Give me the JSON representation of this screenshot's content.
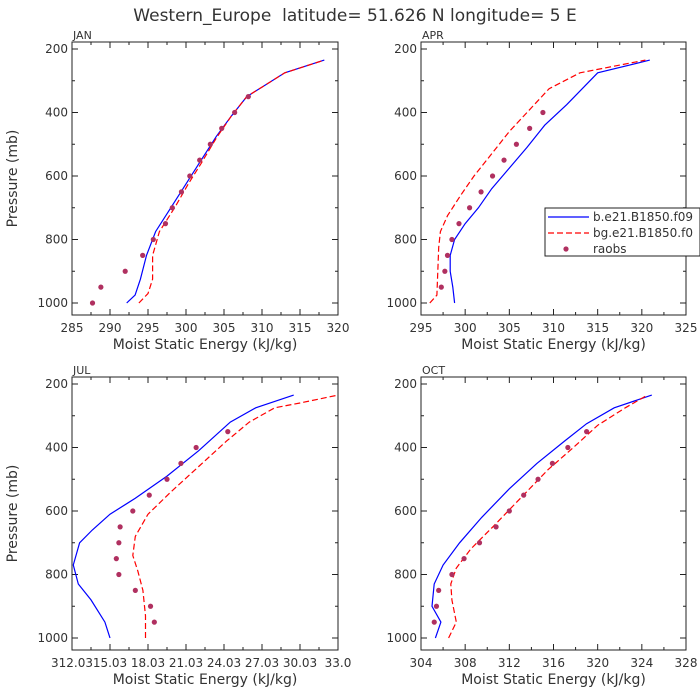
{
  "figure_title": "Western_Europe  latitude= 51.626 N longitude= 5 E",
  "legend": {
    "entries": [
      {
        "label": "b.e21.B1850.f09",
        "color": "#0000ff",
        "style": "solid"
      },
      {
        "label": "bg.e21.B1850.f0",
        "color": "#ff0000",
        "style": "dashed"
      },
      {
        "label": "raobs",
        "color": "#b03060",
        "style": "dot"
      }
    ]
  },
  "chart_data": [
    {
      "type": "line",
      "panel": "JAN",
      "title": "JAN",
      "xlabel": "Moist Static Energy (kJ/kg)",
      "ylabel": "Pressure (mb)",
      "xlim": [
        285,
        320
      ],
      "ylim": [
        1000,
        200
      ],
      "y_inverted": true,
      "xticks": [
        "285",
        "290",
        "295",
        "300",
        "305",
        "310",
        "315",
        "320"
      ],
      "yticks": [
        "200",
        "400",
        "600",
        "800",
        "1000"
      ],
      "series": [
        {
          "name": "b.e21.B1850.f09",
          "style": "solid",
          "color": "#0000ff",
          "x": [
            292.2,
            293.3,
            294.0,
            294.8,
            296.0,
            298.0,
            300.0,
            302.0,
            304.0,
            306.0,
            308.0,
            310.0,
            313.0,
            318.2
          ],
          "y": [
            1000,
            975,
            925,
            850,
            775,
            700,
            625,
            550,
            475,
            410,
            350,
            320,
            275,
            235
          ]
        },
        {
          "name": "bg.e21.B1850.f0",
          "style": "dashed",
          "color": "#ff0000",
          "x": [
            293.8,
            295.0,
            295.6,
            295.6,
            296.5,
            298.5,
            300.3,
            302.0,
            304.0,
            306.0,
            308.0,
            310.0,
            313.0,
            318.2
          ],
          "y": [
            1000,
            970,
            925,
            850,
            775,
            700,
            625,
            560,
            480,
            410,
            350,
            320,
            275,
            235
          ]
        },
        {
          "name": "raobs",
          "style": "dot",
          "color": "#b03060",
          "x": [
            287.7,
            288.8,
            292.0,
            294.3,
            295.7,
            297.3,
            298.2,
            299.4,
            300.5,
            301.8,
            303.2,
            304.7,
            306.4,
            308.2
          ],
          "y": [
            1000,
            950,
            900,
            850,
            800,
            750,
            700,
            650,
            600,
            550,
            500,
            450,
            400,
            350
          ]
        }
      ]
    },
    {
      "type": "line",
      "panel": "APR",
      "title": "APR",
      "xlabel": "Moist Static Energy (kJ/kg)",
      "ylabel": "",
      "xlim": [
        295,
        325
      ],
      "ylim": [
        1000,
        200
      ],
      "y_inverted": true,
      "xticks": [
        "295",
        "300",
        "305",
        "310",
        "315",
        "320",
        "325"
      ],
      "yticks": [
        "200",
        "400",
        "600",
        "800",
        "1000"
      ],
      "series": [
        {
          "name": "b.e21.B1850.f09",
          "style": "solid",
          "color": "#0000ff",
          "x": [
            298.8,
            298.6,
            298.3,
            298.3,
            298.8,
            300.0,
            301.5,
            303.0,
            305.0,
            307.0,
            309.0,
            311.5,
            315.0,
            320.9
          ],
          "y": [
            1000,
            950,
            900,
            850,
            800,
            750,
            700,
            640,
            575,
            510,
            440,
            375,
            275,
            235
          ]
        },
        {
          "name": "bg.e21.B1850.f0",
          "style": "dashed",
          "color": "#ff0000",
          "x": [
            296.0,
            296.8,
            296.9,
            297.0,
            297.2,
            298.0,
            299.5,
            301.0,
            303.0,
            305.0,
            307.0,
            309.5,
            313.0,
            320.4
          ],
          "y": [
            1000,
            975,
            900,
            825,
            775,
            725,
            660,
            600,
            530,
            460,
            400,
            325,
            275,
            235
          ]
        },
        {
          "name": "raobs",
          "style": "dot",
          "color": "#b03060",
          "x": [
            297.3,
            297.7,
            298.0,
            298.5,
            299.3,
            300.5,
            301.8,
            303.1,
            304.4,
            305.8,
            307.3,
            308.8
          ],
          "y": [
            950,
            900,
            850,
            800,
            750,
            700,
            650,
            600,
            550,
            500,
            450,
            400
          ]
        }
      ]
    },
    {
      "type": "line",
      "panel": "JUL",
      "title": "JUL",
      "xlabel": "Moist Static Energy (kJ/kg)",
      "ylabel": "Pressure (mb)",
      "xlim": [
        312.0,
        333.0
      ],
      "ylim": [
        1000,
        200
      ],
      "y_inverted": true,
      "xticks": [
        "312.03",
        "15.03",
        "18.03",
        "21.03",
        "24.03",
        "27.03",
        "30.03",
        "33.0"
      ],
      "yticks": [
        "200",
        "400",
        "600",
        "800",
        "1000"
      ],
      "series": [
        {
          "name": "b.e21.B1850.f09",
          "style": "solid",
          "color": "#0000ff",
          "x": [
            315.0,
            314.6,
            313.5,
            312.5,
            312.1,
            312.6,
            313.6,
            315.0,
            317.0,
            319.5,
            322.0,
            324.5,
            326.5,
            329.5
          ],
          "y": [
            1000,
            950,
            880,
            830,
            770,
            700,
            660,
            610,
            560,
            490,
            410,
            320,
            275,
            235
          ]
        },
        {
          "name": "bg.e21.B1850.f0",
          "style": "dashed",
          "color": "#ff0000",
          "x": [
            317.8,
            317.8,
            317.6,
            317.2,
            316.8,
            317.0,
            318.0,
            319.8,
            322.0,
            324.2,
            326.0,
            328.0,
            330.0,
            333.0
          ],
          "y": [
            1000,
            930,
            850,
            790,
            740,
            680,
            610,
            540,
            460,
            380,
            320,
            275,
            260,
            235
          ]
        },
        {
          "name": "raobs",
          "style": "dot",
          "color": "#b03060",
          "x": [
            318.5,
            318.2,
            317.0,
            315.7,
            315.5,
            315.7,
            315.8,
            316.8,
            318.1,
            319.5,
            320.6,
            321.8,
            324.3
          ],
          "y": [
            950,
            900,
            850,
            800,
            750,
            700,
            650,
            600,
            550,
            500,
            450,
            400,
            350
          ]
        }
      ]
    },
    {
      "type": "line",
      "panel": "OCT",
      "title": "OCT",
      "xlabel": "Moist Static Energy (kJ/kg)",
      "ylabel": "",
      "xlim": [
        304,
        328
      ],
      "ylim": [
        1000,
        200
      ],
      "y_inverted": true,
      "xticks": [
        "304",
        "308",
        "312",
        "316",
        "320",
        "324",
        "328"
      ],
      "yticks": [
        "200",
        "400",
        "600",
        "800",
        "1000"
      ],
      "series": [
        {
          "name": "b.e21.B1850.f09",
          "style": "solid",
          "color": "#0000ff",
          "x": [
            305.3,
            305.8,
            305.0,
            305.2,
            306.0,
            307.5,
            309.5,
            312.0,
            314.5,
            317.0,
            319.0,
            321.5,
            324.9
          ],
          "y": [
            1000,
            950,
            900,
            830,
            770,
            700,
            620,
            530,
            450,
            380,
            325,
            275,
            235
          ]
        },
        {
          "name": "bg.e21.B1850.f0",
          "style": "dashed",
          "color": "#ff0000",
          "x": [
            306.5,
            307.2,
            306.8,
            306.7,
            307.2,
            308.5,
            310.5,
            313.0,
            315.5,
            317.8,
            320.0,
            322.5,
            324.5
          ],
          "y": [
            1000,
            950,
            880,
            830,
            780,
            720,
            650,
            560,
            470,
            400,
            330,
            275,
            235
          ]
        },
        {
          "name": "raobs",
          "style": "dot",
          "color": "#b03060",
          "x": [
            305.2,
            305.4,
            305.6,
            306.8,
            307.9,
            309.3,
            310.8,
            312.0,
            313.3,
            314.6,
            315.9,
            317.3,
            319.0
          ],
          "y": [
            950,
            900,
            850,
            800,
            750,
            700,
            650,
            600,
            550,
            500,
            450,
            400,
            350
          ]
        }
      ]
    }
  ]
}
